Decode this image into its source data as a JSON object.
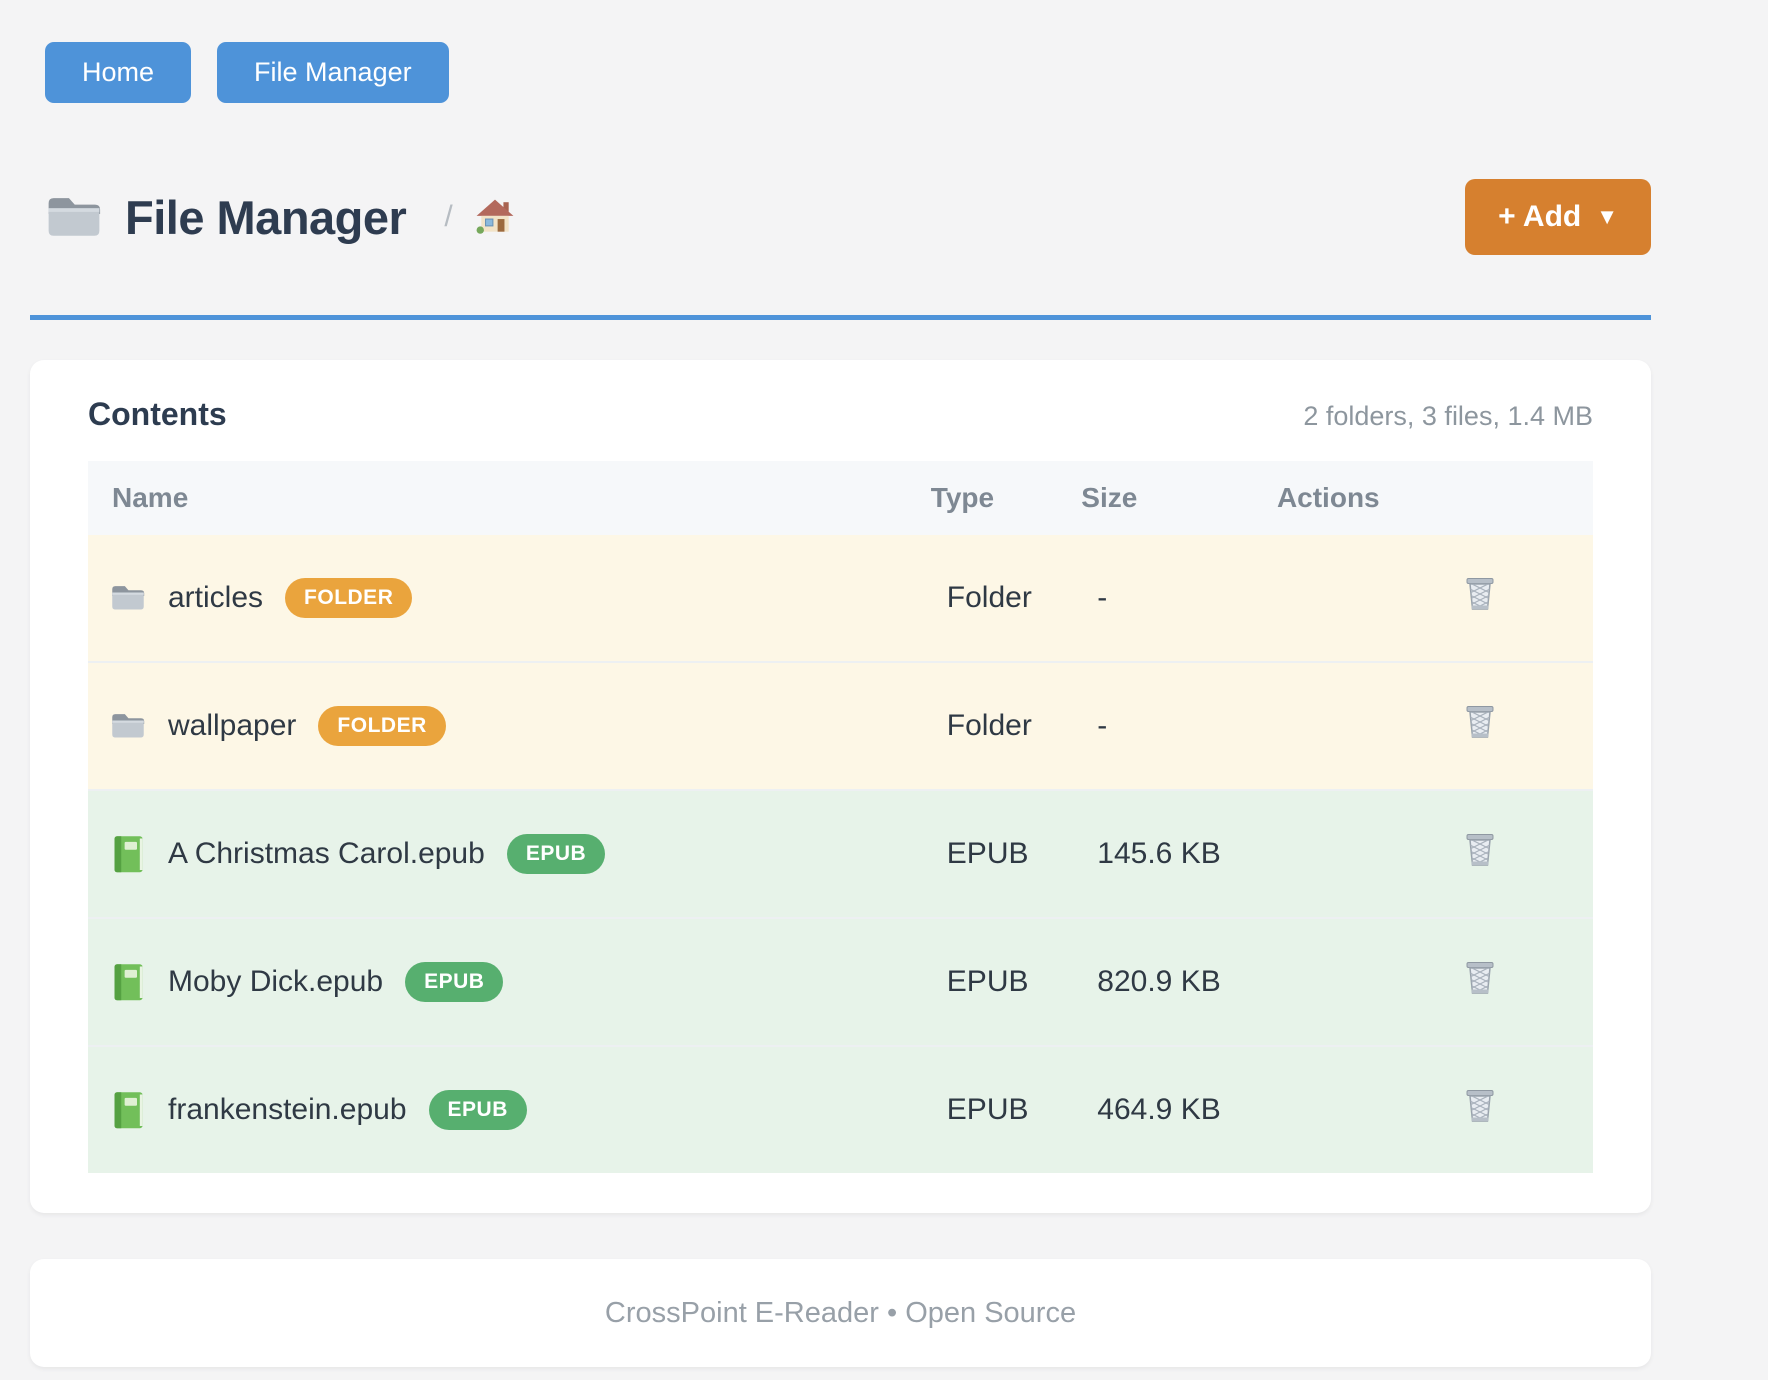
{
  "nav": {
    "buttons": [
      {
        "label": "Home"
      },
      {
        "label": "File Manager"
      }
    ]
  },
  "page_header": {
    "title_icon": "folder-icon",
    "title": "File Manager",
    "breadcrumb": {
      "separator": "/",
      "home_icon": "house-icon"
    },
    "add_button": {
      "label": "+ Add",
      "caret": "▼"
    }
  },
  "contents_card": {
    "title": "Contents",
    "summary": "2 folders, 3 files, 1.4 MB",
    "table": {
      "columns": [
        "Name",
        "Type",
        "Size",
        "Actions"
      ],
      "rows": [
        {
          "icon": "folder-icon",
          "name": "articles",
          "kind": "folder",
          "badge": {
            "label": "FOLDER",
            "color": "#eaa43d"
          },
          "type": "Folder",
          "size": "-",
          "action_icon": "trash-icon"
        },
        {
          "icon": "folder-icon",
          "name": "wallpaper",
          "kind": "folder",
          "badge": {
            "label": "FOLDER",
            "color": "#eaa43d"
          },
          "type": "Folder",
          "size": "-",
          "action_icon": "trash-icon"
        },
        {
          "icon": "book-icon",
          "name": "A Christmas Carol.epub",
          "kind": "epub",
          "badge": {
            "label": "EPUB",
            "color": "#57af6f"
          },
          "type": "EPUB",
          "size": "145.6 KB",
          "action_icon": "trash-icon"
        },
        {
          "icon": "book-icon",
          "name": "Moby Dick.epub",
          "kind": "epub",
          "badge": {
            "label": "EPUB",
            "color": "#57af6f"
          },
          "type": "EPUB",
          "size": "820.9 KB",
          "action_icon": "trash-icon"
        },
        {
          "icon": "book-icon",
          "name": "frankenstein.epub",
          "kind": "epub",
          "badge": {
            "label": "EPUB",
            "color": "#57af6f"
          },
          "type": "EPUB",
          "size": "464.9 KB",
          "action_icon": "trash-icon"
        }
      ]
    },
    "row_colors": {
      "folder": "#fdf7e6",
      "epub": "#e7f3e9"
    }
  },
  "footer": {
    "text": "CrossPoint E-Reader • Open Source"
  },
  "theme": {
    "primary_blue": "#4e93d9",
    "accent_orange": "#d6802f",
    "badge_orange": "#eaa43d",
    "badge_green": "#57af6f",
    "folder_row_bg": "#fdf7e6",
    "epub_row_bg": "#e7f3e9",
    "page_bg": "#f4f4f5"
  }
}
